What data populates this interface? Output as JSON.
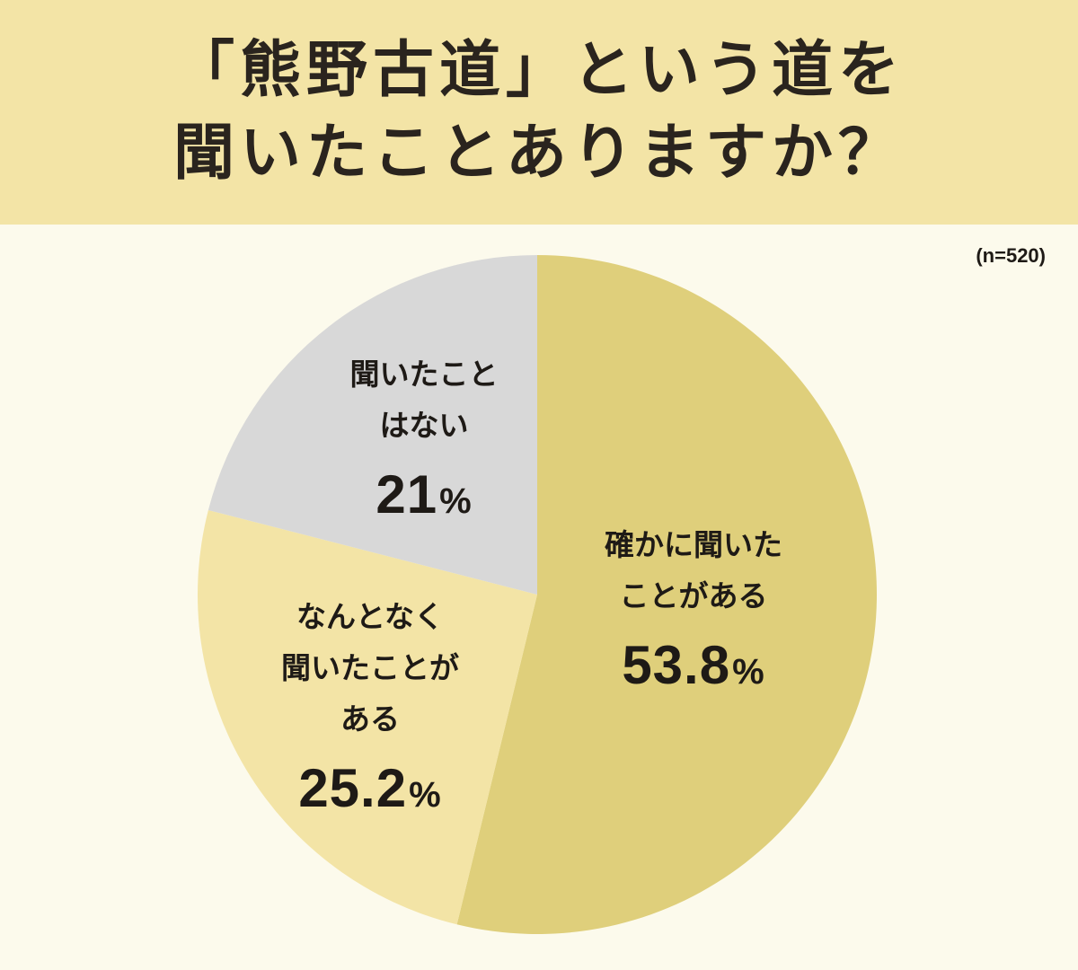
{
  "title": {
    "line1": "「熊野古道」という道を",
    "line2": "聞いたことありますか？"
  },
  "sample_size": "(n=520)",
  "colors": {
    "header_bg": "#f3e4a6",
    "page_bg": "#fcfaec",
    "slice_1": "#dfcf7b",
    "slice_2": "#f3e4a6",
    "slice_3": "#d8d8d8"
  },
  "chart_data": {
    "type": "pie",
    "title": "「熊野古道」という道を聞いたことありますか？",
    "n": 520,
    "unit": "%",
    "slices": [
      {
        "label": "確かに聞いた\nことがある",
        "value": 53.8,
        "display": "53.8",
        "color": "#dfcf7b"
      },
      {
        "label": "なんとなく\n聞いたことが\nある",
        "value": 25.2,
        "display": "25.2",
        "color": "#f3e4a6"
      },
      {
        "label": "聞いたこと\nはない",
        "value": 21,
        "display": "21",
        "color": "#d8d8d8"
      }
    ]
  }
}
